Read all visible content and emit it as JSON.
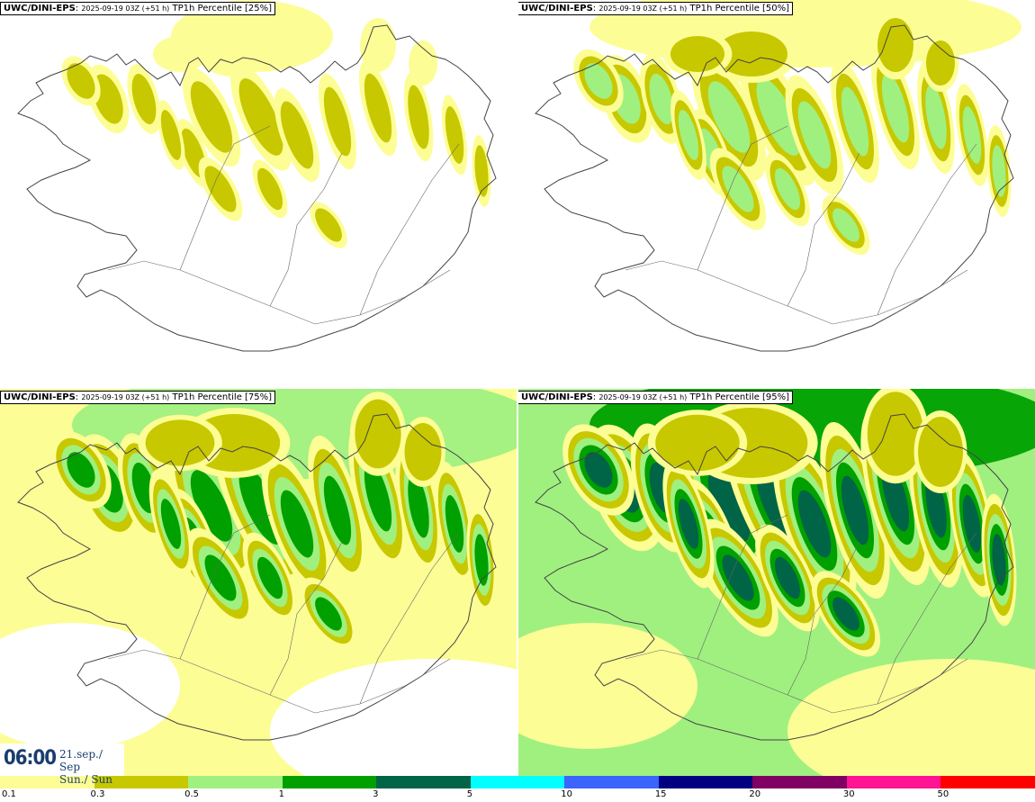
{
  "panels": [
    {
      "model": "UWC/DINI-EPS",
      "init": "2025-09-19 03Z (+51 h)",
      "param": "TP1h Percentile [25%]",
      "intensity": 1
    },
    {
      "model": "UWC/DINI-EPS",
      "init": "2025-09-19 03Z (+51 h)",
      "param": "TP1h Percentile [50%]",
      "intensity": 2
    },
    {
      "model": "UWC/DINI-EPS",
      "init": "2025-09-19 03Z (+51 h)",
      "param": "TP1h Percentile [75%]",
      "intensity": 3
    },
    {
      "model": "UWC/DINI-EPS",
      "init": "2025-09-19 03Z (+51 h)",
      "param": "TP1h Percentile [95%]",
      "intensity": 4
    }
  ],
  "valid_time": {
    "time": "06:00",
    "date_line1": "21.sep./ Sep",
    "date_line2": "Sun./ Sun"
  },
  "legend": {
    "ticks": [
      "0.1",
      "0.3",
      "0.5",
      "1",
      "3",
      "5",
      "10",
      "15",
      "20",
      "30",
      "50"
    ],
    "colors": [
      "#fdfd96",
      "#c8c800",
      "#a0f080",
      "#00a000",
      "#006446",
      "#00ffff",
      "#3c64ff",
      "#000080",
      "#800064",
      "#ff1493",
      "#ff0000"
    ]
  }
}
